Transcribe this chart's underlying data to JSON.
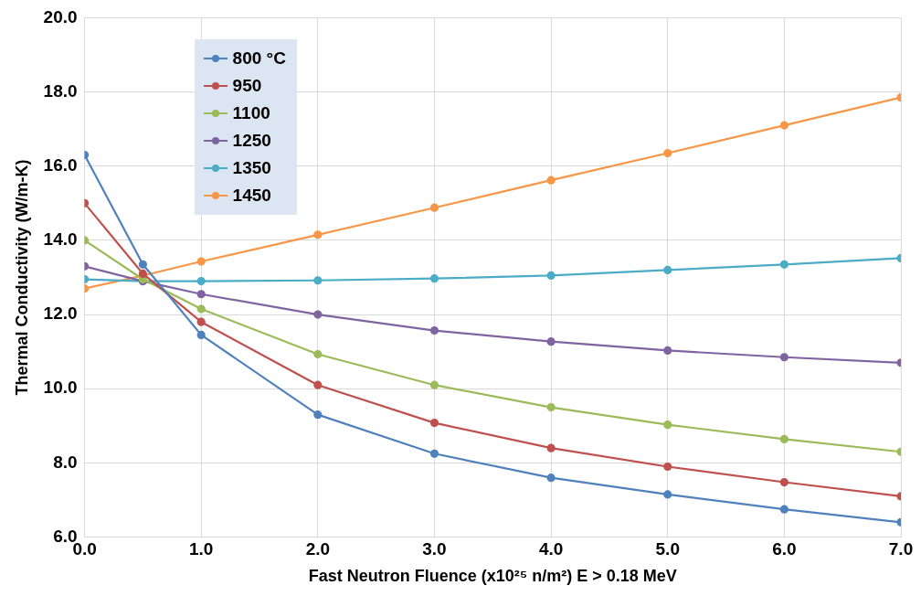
{
  "chart_data": {
    "type": "line",
    "xlabel": "Fast Neutron Fluence (x10²⁵ n/m²) E > 0.18 MeV",
    "ylabel": "Thermal Conductivity (W/m-K)",
    "x": [
      0,
      0.5,
      1,
      2,
      3,
      4,
      5,
      6,
      7
    ],
    "xlim": [
      0,
      7
    ],
    "xticks": [
      {
        "value": 0,
        "label": "0.0"
      },
      {
        "value": 1,
        "label": "1.0"
      },
      {
        "value": 2,
        "label": "2.0"
      },
      {
        "value": 3,
        "label": "3.0"
      },
      {
        "value": 4,
        "label": "4.0"
      },
      {
        "value": 5,
        "label": "5.0"
      },
      {
        "value": 6,
        "label": "6.0"
      },
      {
        "value": 7,
        "label": "7.0"
      }
    ],
    "ylim": [
      6,
      20
    ],
    "yticks": [
      {
        "value": 6,
        "label": "6.0"
      },
      {
        "value": 8,
        "label": "8.0"
      },
      {
        "value": 10,
        "label": "10.0"
      },
      {
        "value": 12,
        "label": "12.0"
      },
      {
        "value": 14,
        "label": "14.0"
      },
      {
        "value": 16,
        "label": "16.0"
      },
      {
        "value": 18,
        "label": "18.0"
      },
      {
        "value": 20,
        "label": "20.0"
      }
    ],
    "grid": true,
    "legend": "top left",
    "marker": "circle",
    "line_style": "solid",
    "series": [
      {
        "name": "800 °C",
        "color": "#4f81bd",
        "values": [
          16.3,
          13.35,
          11.45,
          9.3,
          8.25,
          7.6,
          7.15,
          6.75,
          6.4
        ]
      },
      {
        "name": "950",
        "color": "#c0504d",
        "values": [
          15.0,
          13.1,
          11.8,
          10.1,
          9.08,
          8.4,
          7.9,
          7.48,
          7.1
        ]
      },
      {
        "name": "1100",
        "color": "#9bbb59",
        "values": [
          14.0,
          12.95,
          12.15,
          10.93,
          10.1,
          9.5,
          9.03,
          8.64,
          8.3
        ]
      },
      {
        "name": "1250",
        "color": "#8064a2",
        "values": [
          13.3,
          12.9,
          12.55,
          12.0,
          11.57,
          11.27,
          11.03,
          10.85,
          10.7
        ]
      },
      {
        "name": "1350",
        "color": "#4bacc6",
        "values": [
          12.95,
          12.9,
          12.9,
          12.92,
          12.97,
          13.05,
          13.2,
          13.35,
          13.52
        ]
      },
      {
        "name": "1450",
        "color": "#f79646",
        "values": [
          12.7,
          13.05,
          13.43,
          14.15,
          14.88,
          15.62,
          16.35,
          17.1,
          17.85
        ]
      }
    ]
  }
}
